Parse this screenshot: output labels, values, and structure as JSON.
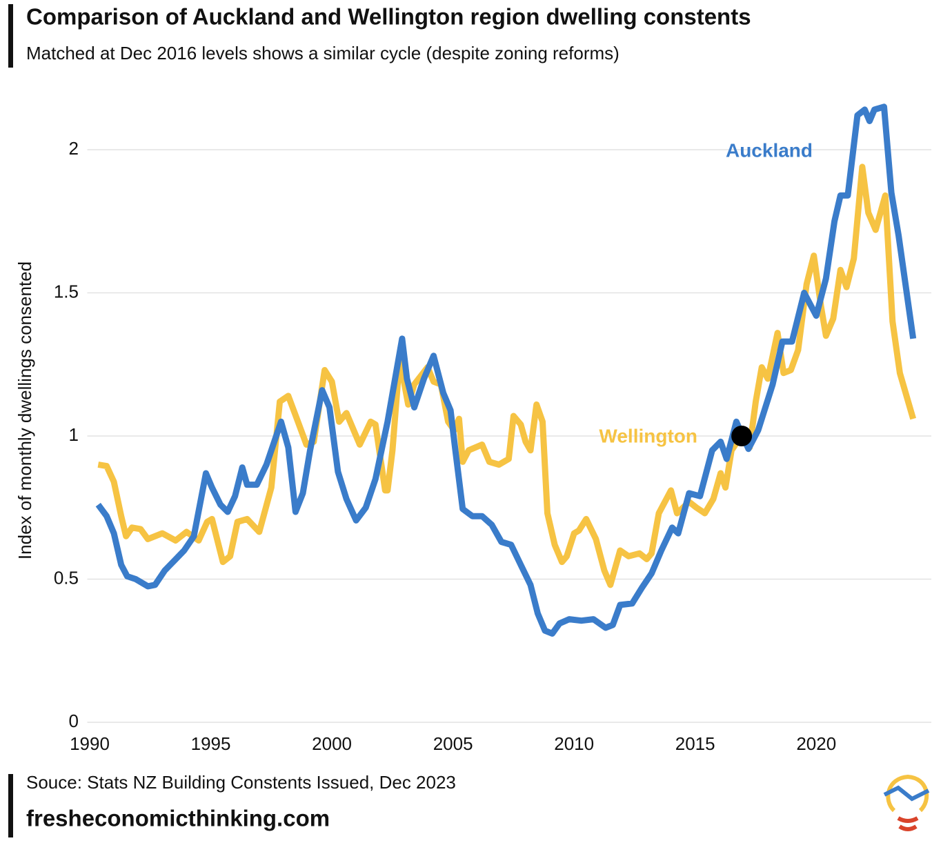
{
  "chart_data": {
    "type": "line",
    "title": "Comparison of Auckland and Wellington region dwelling constents",
    "subtitle": "Matched at Dec 2016 levels shows a similar cycle (despite zoning reforms)",
    "y_label": "Index of monthly dwellings consented",
    "source": "Souce: Stats NZ Building Constents Issued, Dec 2023",
    "website": "fresheconomicthinking.com",
    "xlim": [
      1989.9,
      2024.75
    ],
    "xticks": [
      1990,
      1995,
      2000,
      2005,
      2010,
      2015,
      2020
    ],
    "ylim": [
      0,
      2.2
    ],
    "yticks": [
      0,
      0.5,
      1,
      1.5,
      2
    ],
    "grid": true,
    "highlight": {
      "x": 2016.92,
      "y": 1
    },
    "series": [
      {
        "name": "Auckland",
        "color": "#3a7cca",
        "x": [
          1990.35,
          1990.7,
          1991.0,
          1991.3,
          1991.55,
          1991.9,
          1992.4,
          1992.7,
          1993.1,
          1993.5,
          1993.9,
          1994.3,
          1994.8,
          1995.05,
          1995.4,
          1995.7,
          1996.0,
          1996.3,
          1996.5,
          1996.9,
          1997.3,
          1997.9,
          1998.2,
          1998.5,
          1998.8,
          1999.1,
          1999.6,
          1999.9,
          2000.25,
          2000.6,
          2001.0,
          2001.4,
          2001.8,
          2002.3,
          2002.9,
          2003.1,
          2003.4,
          2003.8,
          2004.2,
          2004.6,
          2004.9,
          2005.1,
          2005.4,
          2005.8,
          2006.2,
          2006.6,
          2007.0,
          2007.4,
          2007.8,
          2008.2,
          2008.5,
          2008.8,
          2009.1,
          2009.4,
          2009.8,
          2010.3,
          2010.8,
          2011.3,
          2011.6,
          2011.9,
          2012.4,
          2012.8,
          2013.2,
          2013.6,
          2014.05,
          2014.3,
          2014.75,
          2015.2,
          2015.7,
          2016.05,
          2016.3,
          2016.7,
          2017.2,
          2017.6,
          2018.2,
          2018.6,
          2019.0,
          2019.5,
          2020.0,
          2020.4,
          2020.75,
          2021.0,
          2021.3,
          2021.7,
          2022.0,
          2022.2,
          2022.4,
          2022.8,
          2023.1,
          2023.4,
          2024.0
        ],
        "values": [
          0.76,
          0.72,
          0.66,
          0.55,
          0.51,
          0.5,
          0.475,
          0.48,
          0.53,
          0.565,
          0.6,
          0.65,
          0.87,
          0.82,
          0.76,
          0.735,
          0.79,
          0.89,
          0.83,
          0.83,
          0.9,
          1.05,
          0.96,
          0.735,
          0.8,
          0.95,
          1.16,
          1.1,
          0.875,
          0.78,
          0.705,
          0.75,
          0.85,
          1.05,
          1.34,
          1.2,
          1.1,
          1.2,
          1.28,
          1.15,
          1.09,
          0.95,
          0.745,
          0.72,
          0.72,
          0.69,
          0.63,
          0.62,
          0.55,
          0.48,
          0.38,
          0.32,
          0.31,
          0.345,
          0.36,
          0.355,
          0.36,
          0.33,
          0.34,
          0.41,
          0.415,
          0.47,
          0.52,
          0.6,
          0.68,
          0.66,
          0.8,
          0.79,
          0.95,
          0.98,
          0.92,
          1.05,
          0.955,
          1.02,
          1.18,
          1.33,
          1.33,
          1.5,
          1.42,
          1.55,
          1.75,
          1.84,
          1.84,
          2.12,
          2.14,
          2.1,
          2.14,
          2.15,
          1.85,
          1.7,
          1.34
        ]
      },
      {
        "name": "Wellington",
        "color": "#f6c343",
        "x": [
          1990.35,
          1990.7,
          1991.0,
          1991.3,
          1991.5,
          1991.75,
          1992.1,
          1992.4,
          1993.0,
          1993.55,
          1994.0,
          1994.5,
          1994.85,
          1995.05,
          1995.5,
          1995.8,
          1996.1,
          1996.5,
          1997.0,
          1997.5,
          1997.85,
          1998.2,
          1998.6,
          1998.95,
          1999.25,
          1999.7,
          2000.0,
          2000.3,
          2000.6,
          2001.15,
          2001.6,
          2001.8,
          2002.2,
          2002.3,
          2002.5,
          2002.8,
          2003.15,
          2003.4,
          2003.95,
          2004.2,
          2004.5,
          2004.8,
          2005.05,
          2005.25,
          2005.4,
          2005.65,
          2006.2,
          2006.5,
          2006.9,
          2007.3,
          2007.5,
          2007.8,
          2008.0,
          2008.2,
          2008.45,
          2008.7,
          2008.9,
          2009.2,
          2009.5,
          2009.7,
          2010.0,
          2010.2,
          2010.5,
          2010.9,
          2011.25,
          2011.5,
          2011.9,
          2012.25,
          2012.7,
          2013.0,
          2013.2,
          2013.5,
          2014.0,
          2014.25,
          2014.75,
          2015.05,
          2015.4,
          2015.75,
          2016.05,
          2016.25,
          2016.5,
          2016.9,
          2017.25,
          2017.5,
          2017.75,
          2018.0,
          2018.4,
          2018.65,
          2018.95,
          2019.25,
          2019.6,
          2019.9,
          2020.2,
          2020.4,
          2020.7,
          2021.0,
          2021.25,
          2021.55,
          2021.9,
          2022.15,
          2022.45,
          2022.85,
          2023.15,
          2023.45,
          2024.0
        ],
        "values": [
          0.9,
          0.895,
          0.84,
          0.72,
          0.65,
          0.68,
          0.675,
          0.64,
          0.66,
          0.635,
          0.665,
          0.635,
          0.7,
          0.71,
          0.56,
          0.58,
          0.7,
          0.71,
          0.665,
          0.82,
          1.12,
          1.14,
          1.05,
          0.97,
          0.98,
          1.23,
          1.19,
          1.05,
          1.08,
          0.97,
          1.05,
          1.04,
          0.81,
          0.81,
          0.95,
          1.27,
          1.11,
          1.18,
          1.24,
          1.19,
          1.18,
          1.05,
          1.02,
          1.06,
          0.91,
          0.95,
          0.97,
          0.91,
          0.9,
          0.92,
          1.07,
          1.04,
          0.98,
          0.95,
          1.11,
          1.05,
          0.73,
          0.62,
          0.56,
          0.58,
          0.66,
          0.67,
          0.71,
          0.64,
          0.53,
          0.48,
          0.6,
          0.58,
          0.59,
          0.57,
          0.59,
          0.73,
          0.81,
          0.73,
          0.77,
          0.75,
          0.73,
          0.78,
          0.87,
          0.82,
          0.95,
          1.0,
          0.96,
          1.12,
          1.24,
          1.2,
          1.36,
          1.22,
          1.23,
          1.3,
          1.53,
          1.63,
          1.45,
          1.35,
          1.41,
          1.58,
          1.52,
          1.62,
          1.94,
          1.78,
          1.72,
          1.84,
          1.4,
          1.22,
          1.06
        ]
      }
    ]
  }
}
